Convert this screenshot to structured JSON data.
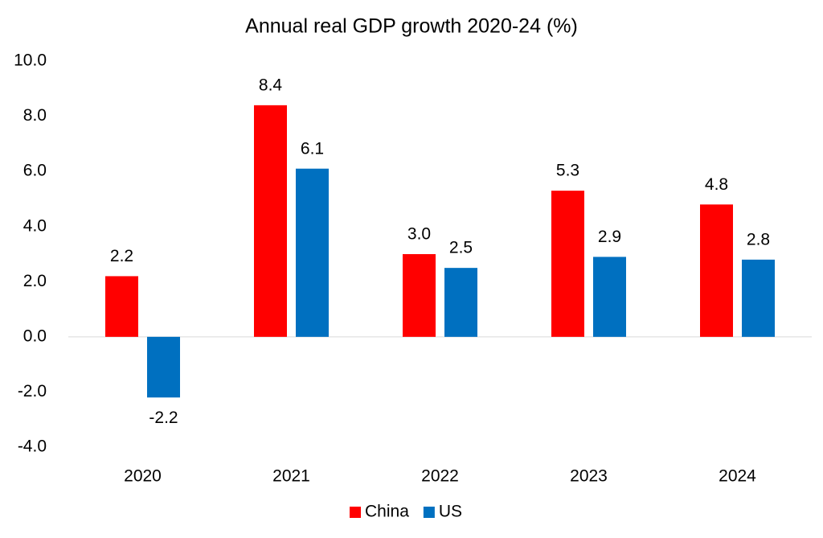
{
  "chart_data": {
    "type": "bar",
    "title": "Annual real GDP growth 2020-24 (%)",
    "categories": [
      "2020",
      "2021",
      "2022",
      "2023",
      "2024"
    ],
    "series": [
      {
        "name": "China",
        "color": "#ff0000",
        "values": [
          2.2,
          8.4,
          3.0,
          5.3,
          4.8
        ],
        "value_labels": [
          "2.2",
          "8.4",
          "3.0",
          "5.3",
          "4.8"
        ]
      },
      {
        "name": "US",
        "color": "#0070c0",
        "values": [
          -2.2,
          6.1,
          2.5,
          2.9,
          2.8
        ],
        "value_labels": [
          "-2.2",
          "6.1",
          "2.5",
          "2.9",
          "2.8"
        ]
      }
    ],
    "ylim": [
      -4,
      10
    ],
    "yticks": [
      {
        "value": -4,
        "label": "-4.0"
      },
      {
        "value": -2,
        "label": "-2.0"
      },
      {
        "value": 0,
        "label": "0.0"
      },
      {
        "value": 2,
        "label": "2.0"
      },
      {
        "value": 4,
        "label": "4.0"
      },
      {
        "value": 6,
        "label": "6.0"
      },
      {
        "value": 8,
        "label": "8.0"
      },
      {
        "value": 10,
        "label": "10.0"
      }
    ],
    "grid": false,
    "legend": "bottom"
  }
}
